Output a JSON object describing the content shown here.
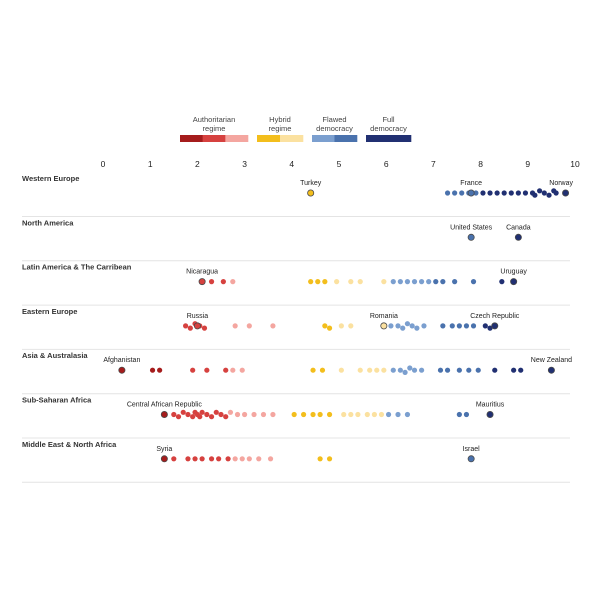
{
  "chart_data": {
    "type": "scatter",
    "title": "",
    "xlabel": "",
    "ylabel": "",
    "xlim": [
      0,
      10
    ],
    "x_ticks": [
      "0",
      "1",
      "2",
      "3",
      "4",
      "5",
      "6",
      "7",
      "8",
      "9",
      "10"
    ],
    "grid": false,
    "legend": {
      "placement": "top",
      "items": [
        {
          "name": "Authoritarian regime",
          "line1": "Authoritarian",
          "line2": "regime",
          "range": [
            0,
            4
          ],
          "swatches": [
            "#a51c1c",
            "#d6413f",
            "#f4a6a0"
          ]
        },
        {
          "name": "Hybrid regime",
          "line1": "Hybrid",
          "line2": "regime",
          "range": [
            4,
            6
          ],
          "swatches": [
            "#f3be1c",
            "#fbe1a0"
          ]
        },
        {
          "name": "Flawed democracy",
          "line1": "Flawed",
          "line2": "democracy",
          "range": [
            6,
            8
          ],
          "swatches": [
            "#7b9fcf",
            "#4a72ad"
          ]
        },
        {
          "name": "Full democracy",
          "line1": "Full",
          "line2": "democracy",
          "range": [
            8,
            10
          ],
          "swatches": [
            "#213072",
            "#213072"
          ]
        }
      ]
    },
    "colors": {
      "auth_dark": "#a51c1c",
      "auth_mid": "#d6413f",
      "auth_light": "#f4a6a0",
      "hybrid_dark": "#f3be1c",
      "hybrid_light": "#fbe1a0",
      "flawed_light": "#7b9fcf",
      "flawed_dark": "#4a72ad",
      "full": "#213072"
    },
    "regions": [
      {
        "name": "Western Europe",
        "points": [
          4.4,
          7.3,
          7.45,
          7.6,
          7.75,
          7.9,
          8.05,
          8.2,
          8.35,
          8.5,
          8.65,
          8.8,
          8.95,
          9.1,
          9.15,
          9.25,
          9.35,
          9.45,
          9.55,
          9.6,
          9.8
        ],
        "highlights": [
          {
            "label": "Turkey",
            "value": 4.4
          },
          {
            "label": "France",
            "value": 7.8
          },
          {
            "label": "Norway",
            "value": 9.8
          }
        ]
      },
      {
        "name": "North America",
        "points": [
          7.8,
          8.8
        ],
        "highlights": [
          {
            "label": "United States",
            "value": 7.8
          },
          {
            "label": "Canada",
            "value": 8.8
          }
        ]
      },
      {
        "name": "Latin America & The Carribean",
        "points": [
          2.1,
          2.3,
          2.55,
          2.75,
          4.4,
          4.55,
          4.7,
          4.95,
          5.25,
          5.45,
          5.95,
          6.15,
          6.3,
          6.45,
          6.6,
          6.75,
          6.9,
          7.05,
          7.2,
          7.45,
          7.85,
          8.45,
          8.7
        ],
        "highlights": [
          {
            "label": "Nicaragua",
            "value": 2.1
          },
          {
            "label": "Uruguay",
            "value": 8.7
          }
        ]
      },
      {
        "name": "Eastern Europe",
        "points": [
          1.75,
          1.85,
          1.95,
          2.05,
          2.15,
          2.8,
          3.1,
          3.6,
          4.7,
          4.8,
          5.05,
          5.25,
          5.95,
          6.1,
          6.25,
          6.35,
          6.45,
          6.55,
          6.65,
          6.8,
          7.2,
          7.4,
          7.55,
          7.7,
          7.85,
          8.1,
          8.2,
          8.3
        ],
        "highlights": [
          {
            "label": "Russia",
            "value": 2.0
          },
          {
            "label": "Romania",
            "value": 5.95
          },
          {
            "label": "Czech Republic",
            "value": 8.3
          }
        ]
      },
      {
        "name": "Asia & Australasia",
        "points": [
          0.4,
          1.05,
          1.2,
          1.9,
          2.2,
          2.6,
          2.75,
          2.95,
          4.45,
          4.65,
          5.05,
          5.45,
          5.65,
          5.8,
          5.95,
          6.15,
          6.3,
          6.4,
          6.5,
          6.6,
          6.75,
          7.15,
          7.3,
          7.55,
          7.75,
          7.95,
          8.3,
          8.7,
          8.85,
          9.5
        ],
        "highlights": [
          {
            "label": "Afghanistan",
            "value": 0.4
          },
          {
            "label": "New Zealand",
            "value": 9.5
          }
        ]
      },
      {
        "name": "Sub-Saharan Africa",
        "points": [
          1.3,
          1.5,
          1.6,
          1.7,
          1.8,
          1.9,
          1.95,
          2.0,
          2.05,
          2.1,
          2.2,
          2.3,
          2.4,
          2.5,
          2.6,
          2.7,
          2.85,
          3.0,
          3.2,
          3.4,
          3.6,
          4.05,
          4.25,
          4.45,
          4.6,
          4.8,
          5.1,
          5.25,
          5.4,
          5.6,
          5.75,
          5.9,
          6.05,
          6.25,
          6.45,
          7.55,
          7.7,
          8.2
        ],
        "highlights": [
          {
            "label": "Central African Republic",
            "value": 1.3
          },
          {
            "label": "Mauritius",
            "value": 8.2
          }
        ]
      },
      {
        "name": "Middle East & North Africa",
        "points": [
          1.3,
          1.5,
          1.8,
          1.95,
          2.1,
          2.3,
          2.45,
          2.65,
          2.8,
          2.95,
          3.1,
          3.3,
          3.55,
          4.6,
          4.8,
          7.8
        ],
        "highlights": [
          {
            "label": "Syria",
            "value": 1.3
          },
          {
            "label": "Israel",
            "value": 7.8
          }
        ]
      }
    ]
  }
}
